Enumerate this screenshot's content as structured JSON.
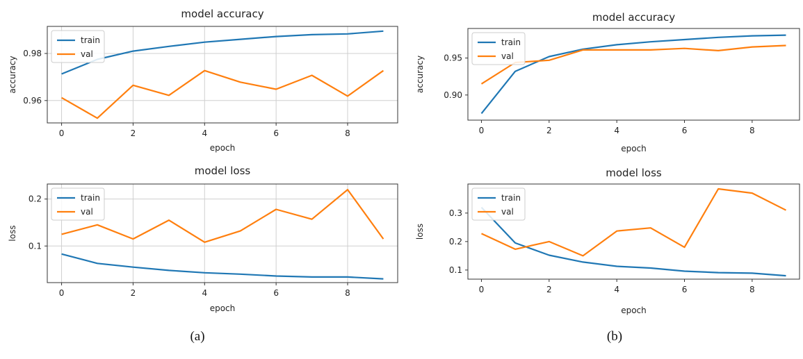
{
  "captions": [
    "(a)",
    "(b)"
  ],
  "colors": {
    "train": "#1f77b4",
    "val": "#ff7f0e",
    "grid": "#cfcfcf",
    "frame": "#333333"
  },
  "chart_data": [
    {
      "id": "a-acc",
      "panel": "a",
      "type": "line",
      "title": "model accuracy",
      "xlabel": "epoch",
      "ylabel": "accuracy",
      "xlim": [
        -0.4,
        9.4
      ],
      "ylim": [
        0.9505,
        0.9915
      ],
      "xticks": [
        0,
        2,
        4,
        6,
        8
      ],
      "yticks": [
        0.96,
        0.98
      ],
      "ytick_labels": [
        "0.96",
        "0.98"
      ],
      "grid": true,
      "legend": "upper left",
      "x": [
        0,
        1,
        2,
        3,
        4,
        5,
        6,
        7,
        8,
        9
      ],
      "series": [
        {
          "name": "train",
          "values": [
            0.9713,
            0.9775,
            0.981,
            0.983,
            0.9848,
            0.986,
            0.9872,
            0.988,
            0.9883,
            0.9895
          ]
        },
        {
          "name": "val",
          "values": [
            0.9612,
            0.9525,
            0.9665,
            0.9622,
            0.9727,
            0.9678,
            0.9648,
            0.9707,
            0.9619,
            0.9727
          ]
        }
      ]
    },
    {
      "id": "a-loss",
      "panel": "a",
      "type": "line",
      "title": "model loss",
      "xlabel": "epoch",
      "ylabel": "loss",
      "xlim": [
        -0.4,
        9.4
      ],
      "ylim": [
        0.022,
        0.232
      ],
      "xticks": [
        0,
        2,
        4,
        6,
        8
      ],
      "yticks": [
        0.1,
        0.2
      ],
      "ytick_labels": [
        "0.1",
        "0.2"
      ],
      "grid": true,
      "legend": "upper left",
      "x": [
        0,
        1,
        2,
        3,
        4,
        5,
        6,
        7,
        8,
        9
      ],
      "series": [
        {
          "name": "train",
          "values": [
            0.083,
            0.063,
            0.055,
            0.048,
            0.043,
            0.04,
            0.036,
            0.034,
            0.034,
            0.03
          ]
        },
        {
          "name": "val",
          "values": [
            0.125,
            0.145,
            0.115,
            0.155,
            0.108,
            0.132,
            0.178,
            0.157,
            0.22,
            0.115
          ]
        }
      ]
    },
    {
      "id": "b-acc",
      "panel": "b",
      "type": "line",
      "title": "model accuracy",
      "xlabel": "epoch",
      "ylabel": "accuracy",
      "xlim": [
        -0.4,
        9.4
      ],
      "ylim": [
        0.866,
        0.99
      ],
      "xticks": [
        0,
        2,
        4,
        6,
        8
      ],
      "yticks": [
        0.9,
        0.95
      ],
      "ytick_labels": [
        "0.90",
        "0.95"
      ],
      "grid": false,
      "legend": "upper left",
      "x": [
        0,
        1,
        2,
        3,
        4,
        5,
        6,
        7,
        8,
        9
      ],
      "series": [
        {
          "name": "train",
          "values": [
            0.875,
            0.932,
            0.952,
            0.962,
            0.968,
            0.972,
            0.975,
            0.978,
            0.98,
            0.981
          ]
        },
        {
          "name": "val",
          "values": [
            0.915,
            0.944,
            0.947,
            0.961,
            0.961,
            0.961,
            0.963,
            0.96,
            0.965,
            0.967
          ]
        }
      ]
    },
    {
      "id": "b-loss",
      "panel": "b",
      "type": "line",
      "title": "model loss",
      "xlabel": "epoch",
      "ylabel": "loss",
      "xlim": [
        -0.4,
        9.4
      ],
      "ylim": [
        0.068,
        0.402
      ],
      "xticks": [
        0,
        2,
        4,
        6,
        8
      ],
      "yticks": [
        0.1,
        0.2,
        0.3
      ],
      "ytick_labels": [
        "0.1",
        "0.2",
        "0.3"
      ],
      "grid": false,
      "legend": "upper left",
      "x": [
        0,
        1,
        2,
        3,
        4,
        5,
        6,
        7,
        8,
        9
      ],
      "series": [
        {
          "name": "train",
          "values": [
            0.32,
            0.195,
            0.152,
            0.128,
            0.113,
            0.107,
            0.096,
            0.091,
            0.089,
            0.08
          ]
        },
        {
          "name": "val",
          "values": [
            0.228,
            0.173,
            0.2,
            0.15,
            0.237,
            0.248,
            0.18,
            0.385,
            0.37,
            0.31
          ]
        }
      ]
    }
  ]
}
